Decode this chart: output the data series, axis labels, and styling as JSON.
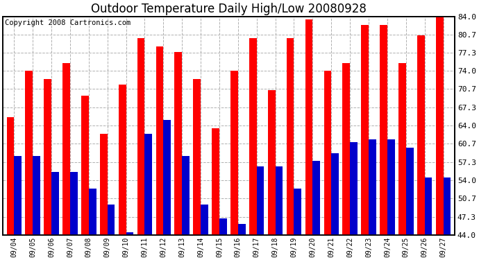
{
  "title": "Outdoor Temperature Daily High/Low 20080928",
  "copyright": "Copyright 2008 Cartronics.com",
  "dates": [
    "09/04",
    "09/05",
    "09/06",
    "09/07",
    "09/08",
    "09/09",
    "09/10",
    "09/11",
    "09/12",
    "09/13",
    "09/14",
    "09/15",
    "09/16",
    "09/17",
    "09/18",
    "09/19",
    "09/20",
    "09/21",
    "09/22",
    "09/23",
    "09/24",
    "09/25",
    "09/26",
    "09/27"
  ],
  "highs": [
    65.5,
    74.0,
    72.5,
    75.5,
    69.5,
    62.5,
    71.5,
    80.0,
    78.5,
    77.5,
    72.5,
    63.5,
    74.0,
    80.0,
    70.5,
    80.0,
    83.5,
    74.0,
    75.5,
    82.5,
    82.5,
    75.5,
    80.5,
    84.0
  ],
  "lows": [
    58.5,
    58.5,
    55.5,
    55.5,
    52.5,
    49.5,
    44.5,
    62.5,
    65.0,
    58.5,
    49.5,
    47.0,
    46.0,
    56.5,
    56.5,
    52.5,
    57.5,
    59.0,
    61.0,
    61.5,
    61.5,
    60.0,
    54.5,
    54.5
  ],
  "high_color": "#ff0000",
  "low_color": "#0000cc",
  "bg_color": "#ffffff",
  "grid_color": "#b0b0b0",
  "ymin": 44.0,
  "ymax": 84.0,
  "yticks": [
    44.0,
    47.3,
    50.7,
    54.0,
    57.3,
    60.7,
    64.0,
    67.3,
    70.7,
    74.0,
    77.3,
    80.7,
    84.0
  ],
  "title_fontsize": 12,
  "copyright_fontsize": 7.5,
  "tick_fontsize": 8,
  "xtick_fontsize": 7
}
